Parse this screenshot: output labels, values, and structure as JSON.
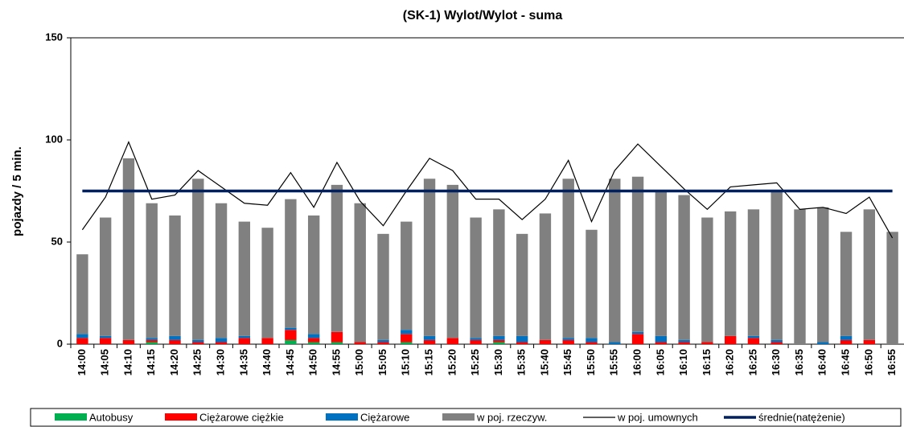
{
  "chart_data": {
    "type": "bar",
    "stacked": true,
    "title": "(SK-1) Wylot/Wylot - suma",
    "ylabel": "pojazdy / 5 min.",
    "categories": [
      "14:00",
      "14:05",
      "14:10",
      "14:15",
      "14:20",
      "14:25",
      "14:30",
      "14:35",
      "14:40",
      "14:45",
      "14:50",
      "14:55",
      "15:00",
      "15:05",
      "15:10",
      "15:15",
      "15:20",
      "15:25",
      "15:30",
      "15:35",
      "15:40",
      "15:45",
      "15:50",
      "15:55",
      "16:00",
      "16:05",
      "16:10",
      "16:15",
      "16:20",
      "16:25",
      "16:30",
      "16:35",
      "16:40",
      "16:45",
      "16:50",
      "16:55"
    ],
    "series": [
      {
        "name": "Autobusy",
        "color": "#00b050",
        "kind": "bar",
        "values": [
          0,
          0,
          0,
          1,
          0,
          0,
          0,
          0,
          0,
          2,
          1,
          1,
          0,
          0,
          1,
          0,
          0,
          0,
          1,
          0,
          0,
          0,
          0,
          0,
          0,
          0,
          0,
          0,
          0,
          0,
          0,
          0,
          0,
          0,
          0,
          0
        ]
      },
      {
        "name": "Ciężarowe ciężkie",
        "color": "#ff0000",
        "kind": "bar",
        "values": [
          3,
          3,
          2,
          1,
          2,
          1,
          1,
          3,
          3,
          5,
          2,
          5,
          1,
          1,
          4,
          2,
          3,
          2,
          1,
          1,
          2,
          2,
          1,
          0,
          5,
          1,
          1,
          1,
          4,
          3,
          1,
          0,
          0,
          2,
          2,
          0
        ]
      },
      {
        "name": "Ciężarowe",
        "color": "#0070c0",
        "kind": "bar",
        "values": [
          2,
          1,
          0,
          1,
          2,
          1,
          2,
          1,
          0,
          1,
          2,
          0,
          0,
          1,
          2,
          2,
          0,
          1,
          2,
          3,
          0,
          1,
          2,
          1,
          1,
          3,
          1,
          0,
          0,
          1,
          1,
          0,
          1,
          2,
          0,
          0
        ]
      },
      {
        "name": "w poj. rzeczyw.",
        "color": "#808080",
        "kind": "bar",
        "values": [
          39,
          58,
          89,
          66,
          59,
          79,
          66,
          56,
          54,
          63,
          58,
          72,
          68,
          52,
          53,
          77,
          75,
          59,
          62,
          50,
          62,
          78,
          53,
          80,
          76,
          71,
          71,
          61,
          61,
          62,
          73,
          66,
          66,
          51,
          64,
          55
        ]
      },
      {
        "name": "w poj. umownych",
        "color": "#000000",
        "kind": "line",
        "values": [
          56,
          72,
          99,
          71,
          73,
          85,
          77,
          69,
          68,
          84,
          67,
          89,
          70,
          58,
          75,
          91,
          85,
          71,
          71,
          61,
          71,
          90,
          60,
          85,
          98,
          87,
          76,
          66,
          77,
          78,
          79,
          66,
          67,
          64,
          72,
          52
        ]
      },
      {
        "name": "średnie(natężenie)",
        "color": "#002060",
        "kind": "line",
        "values": [
          75,
          75,
          75,
          75,
          75,
          75,
          75,
          75,
          75,
          75,
          75,
          75,
          75,
          75,
          75,
          75,
          75,
          75,
          75,
          75,
          75,
          75,
          75,
          75,
          75,
          75,
          75,
          75,
          75,
          75,
          75,
          75,
          75,
          75,
          75,
          75
        ]
      }
    ],
    "ylim": [
      0,
      150
    ],
    "yticks": [
      0,
      50,
      100,
      150
    ],
    "grid": false,
    "legend": "bottom"
  }
}
